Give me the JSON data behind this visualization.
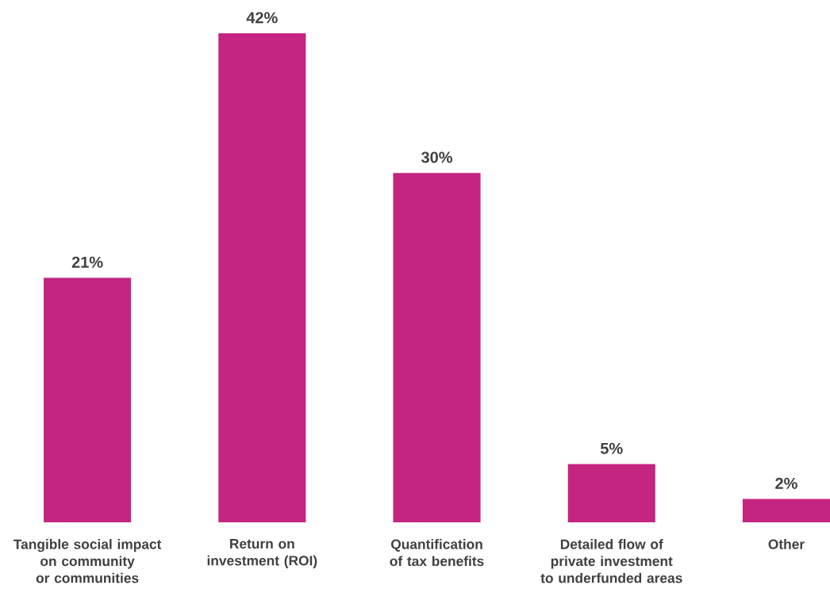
{
  "chart_data": {
    "type": "bar",
    "categories": [
      "Tangible social impact on community or communities",
      "Return on investment (ROI)",
      "Quantification of tax benefits",
      "Detailed flow of private investment to underfunded areas",
      "Other"
    ],
    "values": [
      21,
      42,
      30,
      5,
      2
    ],
    "value_labels": [
      "21%",
      "42%",
      "30%",
      "5%",
      "2%"
    ],
    "color": "#c42580",
    "tick_labels": "x"
  }
}
